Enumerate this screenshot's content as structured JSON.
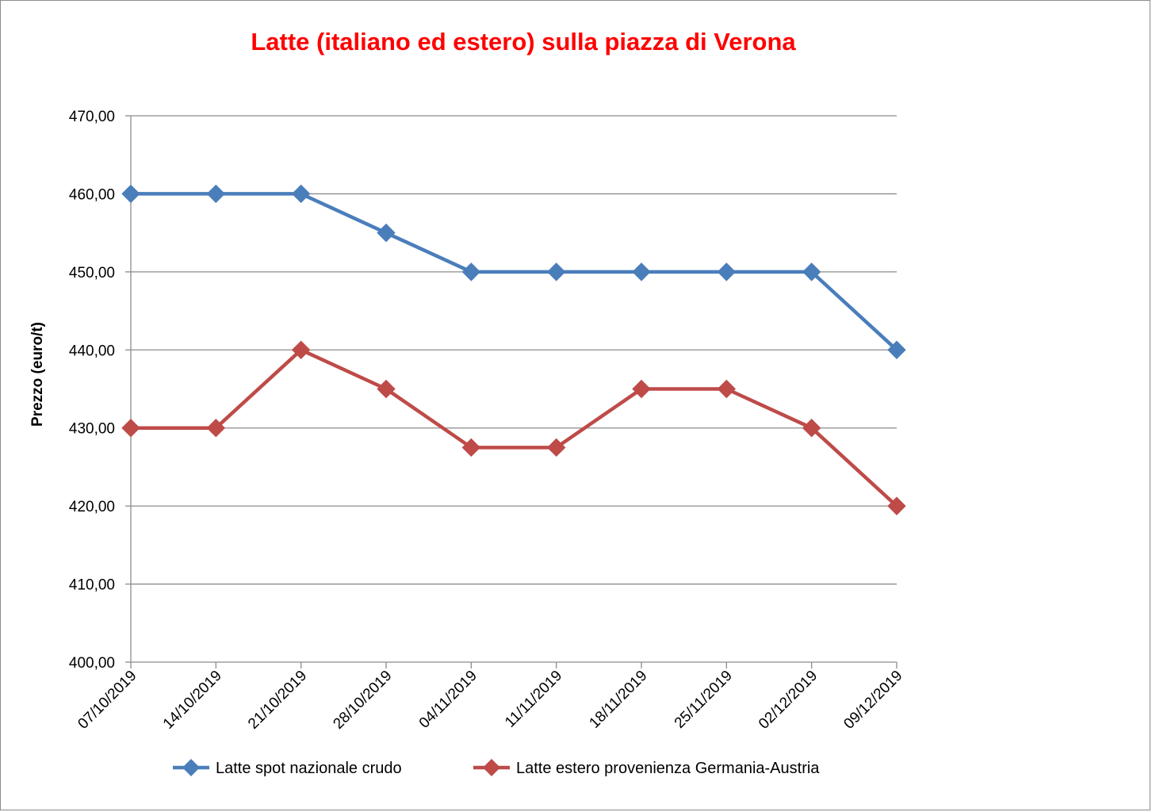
{
  "chart_data": {
    "type": "line",
    "title": "Latte (italiano ed estero) sulla piazza di Verona",
    "title_color": "#ff0000",
    "ylabel": "Prezzo (euro/t)",
    "xlabel": "",
    "ylim": [
      400,
      470
    ],
    "y_step": 10,
    "y_ticks": [
      "400,00",
      "410,00",
      "420,00",
      "430,00",
      "440,00",
      "450,00",
      "460,00",
      "470,00"
    ],
    "grid": true,
    "legend_position": "bottom",
    "categories": [
      "07/10/2019",
      "14/10/2019",
      "21/10/2019",
      "28/10/2019",
      "04/11/2019",
      "11/11/2019",
      "18/11/2019",
      "25/11/2019",
      "02/12/2019",
      "09/12/2019"
    ],
    "series": [
      {
        "name": "Latte spot nazionale crudo",
        "color": "#4a7ebb",
        "marker": "diamond",
        "values": [
          460,
          460,
          460,
          455,
          450,
          450,
          450,
          450,
          450,
          440
        ]
      },
      {
        "name": "Latte estero provenienza Germania-Austria",
        "color": "#be4b48",
        "marker": "diamond",
        "values": [
          430,
          430,
          440,
          435,
          427.5,
          427.5,
          435,
          435,
          430,
          420
        ]
      }
    ]
  }
}
